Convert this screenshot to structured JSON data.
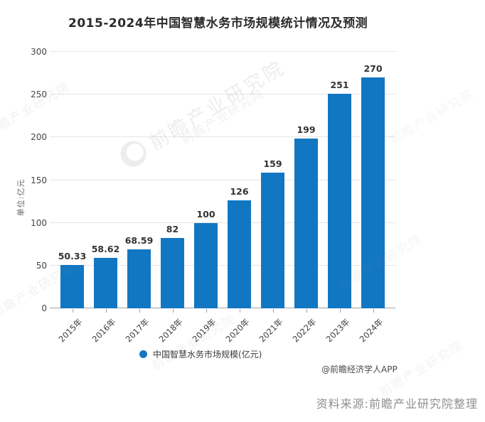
{
  "title": "2015-2024年中国智慧水务市场规模统计情况及预测",
  "chart_data": {
    "type": "bar",
    "categories": [
      "2015年",
      "2016年",
      "2017年",
      "2018年",
      "2019年",
      "2020年",
      "2021年",
      "2022年",
      "2023年",
      "2024年"
    ],
    "values": [
      50.33,
      58.62,
      68.59,
      82,
      100,
      126,
      159,
      199,
      251,
      270
    ],
    "value_labels": [
      "50.33",
      "58.62",
      "68.59",
      "82",
      "100",
      "126",
      "159",
      "199",
      "251",
      "270"
    ],
    "title": "2015-2024年中国智慧水务市场规模统计情况及预测",
    "xlabel": "",
    "ylabel": "单位:亿元",
    "ylim": [
      0,
      300
    ],
    "ytick_step": 50,
    "grid": true,
    "legend": [
      "中国智慧水务市场规模(亿元)"
    ],
    "legend_position": "bottom",
    "bar_color": "#1277c3"
  },
  "y_axis_unit": "单位:亿元",
  "legend": {
    "marker": "circle",
    "label": "中国智慧水务市场规模(亿元)"
  },
  "footer": {
    "attribution": "@前瞻经济学人APP",
    "source": "资料来源:前瞻产业研究院整理"
  },
  "watermark": {
    "text": "前瞻产业研究院"
  },
  "colors": {
    "bar": "#1277c3",
    "grid": "#e5e5e5",
    "axis": "#a3a3a3",
    "title_text": "#2b2b2b",
    "label_text": "#333333",
    "tick_text": "#454545",
    "unit_text": "#666666",
    "legend_text": "#3a3a3a",
    "attribution_text": "#4a4a4a",
    "source_text": "#8f8f8f",
    "watermark": "#8a8a8a"
  }
}
